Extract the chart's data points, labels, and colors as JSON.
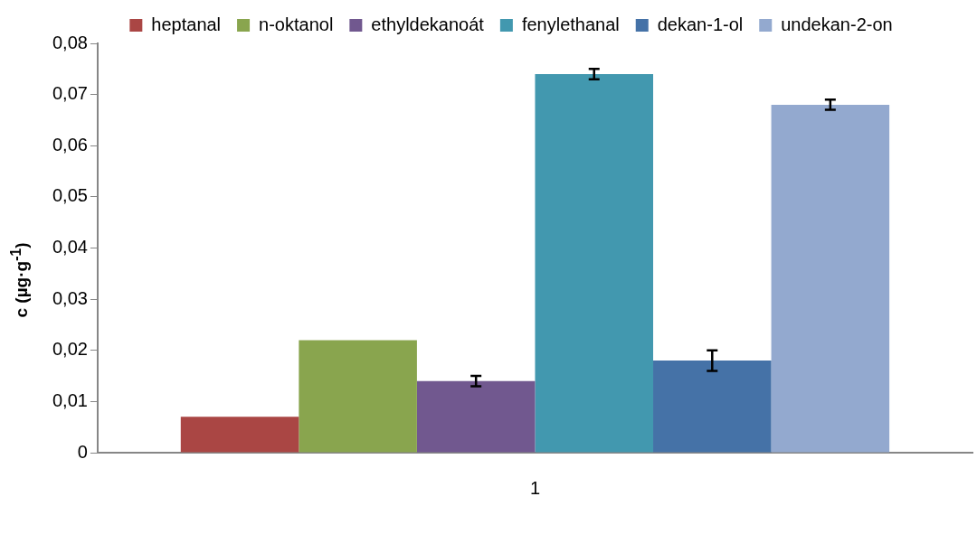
{
  "chart_data": {
    "type": "bar",
    "categories": [
      "1"
    ],
    "ylabel": "c (µg·g$^{-1}$)",
    "ylim": [
      0,
      0.08
    ],
    "yticks": [
      {
        "value": 0,
        "label": "0"
      },
      {
        "value": 0.01,
        "label": "0,01"
      },
      {
        "value": 0.02,
        "label": "0,02"
      },
      {
        "value": 0.03,
        "label": "0,03"
      },
      {
        "value": 0.04,
        "label": "0,04"
      },
      {
        "value": 0.05,
        "label": "0,05"
      },
      {
        "value": 0.06,
        "label": "0,06"
      },
      {
        "value": 0.07,
        "label": "0,07"
      },
      {
        "value": 0.08,
        "label": "0,08"
      }
    ],
    "grid": false,
    "legend": "top",
    "series": [
      {
        "name": "heptanal",
        "color": "#aa4644",
        "values": [
          0.007
        ]
      },
      {
        "name": "n-oktanol",
        "color": "#89a54e",
        "values": [
          0.022
        ]
      },
      {
        "name": "ethyldekanoát",
        "color": "#71588f",
        "values": [
          0.014
        ],
        "errors": [
          0.001
        ]
      },
      {
        "name": "fenylethanal",
        "color": "#4298af",
        "values": [
          0.074
        ],
        "errors": [
          0.001
        ]
      },
      {
        "name": "dekan-1-ol",
        "color": "#4572a7",
        "values": [
          0.018
        ],
        "errors": [
          0.002
        ]
      },
      {
        "name": "undekan-2-on",
        "color": "#93a9cf",
        "values": [
          0.068
        ],
        "errors": [
          0.001
        ]
      }
    ]
  }
}
